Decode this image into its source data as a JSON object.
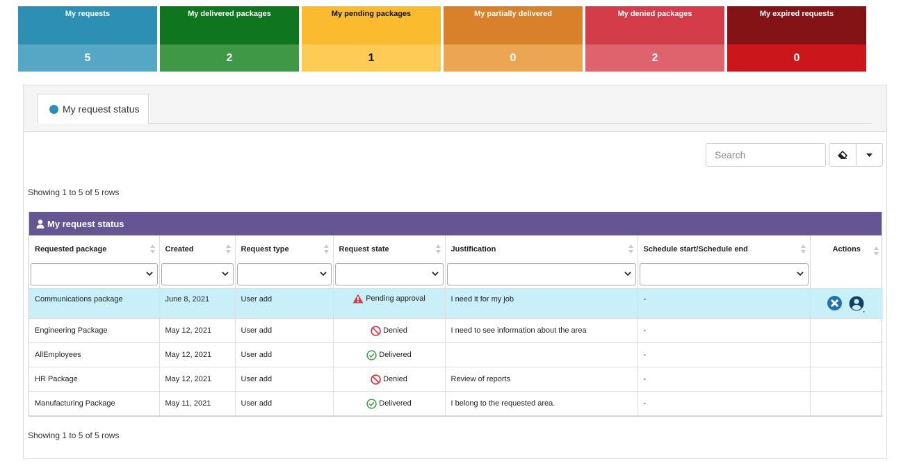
{
  "tiles": [
    {
      "label": "My requests",
      "value": "5"
    },
    {
      "label": "My delivered packages",
      "value": "2"
    },
    {
      "label": "My pending packages",
      "value": "1"
    },
    {
      "label": "My partially delivered",
      "value": "0"
    },
    {
      "label": "My denied packages",
      "value": "2"
    },
    {
      "label": "My expired requests",
      "value": "0"
    }
  ],
  "tab": {
    "label": "My request status"
  },
  "search": {
    "placeholder": "Search"
  },
  "toolbar": {
    "clear_icon": "eraser-icon",
    "menu_icon": "caret-down-icon"
  },
  "showing_top": "Showing 1 to 5 of 5 rows",
  "showing_bottom": "Showing 1 to 5 of 5 rows",
  "table": {
    "title": "My request status",
    "columns": [
      "Requested package",
      "Created",
      "Request type",
      "Request state",
      "Justification",
      "Schedule start/Schedule end",
      "Actions"
    ],
    "rows": [
      {
        "package": "Communications package",
        "created": "June 8, 2021",
        "type": "User add",
        "state": "Pending approval",
        "state_icon": "warning-icon",
        "justification": "I need it for my job",
        "schedule": "-"
      },
      {
        "package": "Engineering Package",
        "created": "May 12, 2021",
        "type": "User add",
        "state": "Denied",
        "state_icon": "denied-icon",
        "justification": "I need to see information about the area",
        "schedule": "-"
      },
      {
        "package": "AllEmployees",
        "created": "May 12, 2021",
        "type": "User add",
        "state": "Delivered",
        "state_icon": "check-circle-icon",
        "justification": "",
        "schedule": "-"
      },
      {
        "package": "HR Package",
        "created": "May 12, 2021",
        "type": "User add",
        "state": "Denied",
        "state_icon": "denied-icon",
        "justification": "Review of reports",
        "schedule": "-"
      },
      {
        "package": "Manufacturing Package",
        "created": "May 11, 2021",
        "type": "User add",
        "state": "Delivered",
        "state_icon": "check-circle-icon",
        "justification": "I belong to the requested area.",
        "schedule": "-"
      }
    ]
  },
  "colors": {
    "tile_requests": "#2e8fb5",
    "tile_delivered": "#0f751e",
    "tile_pending": "#fbbb2e",
    "tile_partial": "#d9802a",
    "tile_denied": "#d33c48",
    "tile_expired": "#841315",
    "table_header": "#655592",
    "row_highlight": "#c9eff9"
  }
}
